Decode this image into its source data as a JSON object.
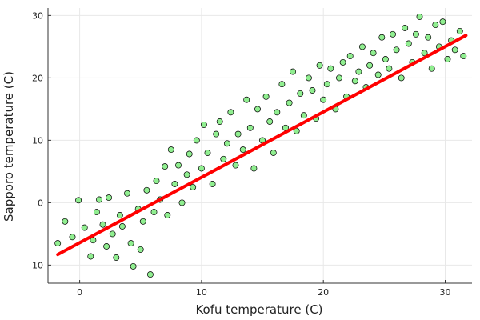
{
  "chart_data": {
    "type": "scatter",
    "title": "",
    "xlabel": "Kofu temperature (C)",
    "ylabel": "Sapporo temperature (C)",
    "xlim": [
      -2.6,
      32.2
    ],
    "ylim": [
      -12.9,
      31.2
    ],
    "xticks": [
      0,
      10,
      20,
      30
    ],
    "yticks": [
      -10,
      0,
      10,
      20,
      30
    ],
    "xtick_labels": [
      "0",
      "10",
      "20",
      "30"
    ],
    "ytick_labels": [
      "-10",
      "0",
      "10",
      "20",
      "30"
    ],
    "grid": true,
    "legend": "none",
    "colors": {
      "points": "#90ee90",
      "point_edge": "#000000",
      "fit_line": "#ff0000"
    },
    "series": [
      {
        "type": "scatter",
        "x": [
          -1.8,
          -1.2,
          -0.6,
          -0.1,
          0.4,
          0.9,
          1.1,
          1.4,
          1.6,
          1.9,
          2.2,
          2.4,
          2.7,
          3.0,
          3.3,
          3.5,
          3.9,
          4.2,
          4.4,
          4.8,
          5.0,
          5.2,
          5.5,
          5.8,
          6.1,
          6.3,
          6.6,
          7.0,
          7.2,
          7.5,
          7.8,
          8.1,
          8.4,
          8.8,
          9.0,
          9.3,
          9.6,
          10.0,
          10.2,
          10.5,
          10.9,
          11.2,
          11.5,
          11.8,
          12.1,
          12.4,
          12.8,
          13.0,
          13.4,
          13.7,
          14.0,
          14.3,
          14.6,
          15.0,
          15.3,
          15.6,
          15.9,
          16.2,
          16.6,
          16.9,
          17.2,
          17.5,
          17.8,
          18.1,
          18.4,
          18.8,
          19.1,
          19.4,
          19.7,
          20.0,
          20.3,
          20.6,
          21.0,
          21.3,
          21.6,
          21.9,
          22.2,
          22.6,
          22.9,
          23.2,
          23.5,
          23.8,
          24.1,
          24.5,
          24.8,
          25.1,
          25.4,
          25.7,
          26.0,
          26.4,
          26.7,
          27.0,
          27.3,
          27.6,
          27.9,
          28.3,
          28.6,
          28.9,
          29.2,
          29.5,
          29.8,
          30.2,
          30.5,
          30.8,
          31.2,
          31.5
        ],
        "y": [
          -6.5,
          -3.0,
          -5.5,
          0.4,
          -4.0,
          -8.6,
          -6.0,
          -1.5,
          0.5,
          -3.5,
          -7.0,
          0.8,
          -5.0,
          -8.8,
          -2.0,
          -3.8,
          1.5,
          -6.5,
          -10.2,
          -1.0,
          -7.5,
          -3.0,
          2.0,
          -11.5,
          -1.5,
          3.5,
          0.5,
          5.8,
          -2.0,
          8.5,
          3.0,
          6.0,
          0.0,
          4.5,
          7.8,
          2.5,
          10.0,
          5.5,
          12.5,
          8.0,
          3.0,
          11.0,
          13.0,
          7.0,
          9.5,
          14.5,
          6.0,
          11.0,
          8.5,
          16.5,
          12.0,
          5.5,
          15.0,
          10.0,
          17.0,
          13.0,
          8.0,
          14.5,
          19.0,
          12.0,
          16.0,
          21.0,
          11.5,
          17.5,
          14.0,
          20.0,
          18.0,
          13.5,
          22.0,
          16.5,
          19.0,
          21.5,
          15.0,
          20.0,
          22.5,
          17.0,
          23.5,
          19.5,
          21.0,
          25.0,
          18.5,
          22.0,
          24.0,
          20.5,
          26.5,
          23.0,
          21.5,
          27.0,
          24.5,
          20.0,
          28.0,
          25.5,
          22.5,
          27.0,
          29.8,
          24.0,
          26.5,
          21.5,
          28.5,
          25.0,
          29.0,
          23.0,
          26.0,
          24.5,
          27.5,
          23.5
        ]
      },
      {
        "type": "line",
        "name": "",
        "x": [
          -1.8,
          31.7
        ],
        "y": [
          -8.3,
          26.8
        ]
      }
    ]
  }
}
